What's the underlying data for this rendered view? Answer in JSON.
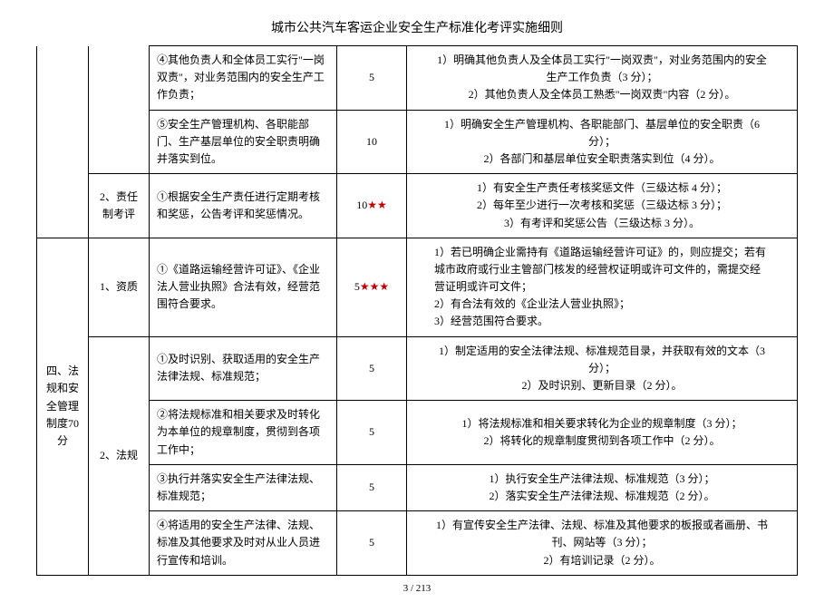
{
  "title": "城市公共汽车客运企业安全生产标准化考评实施细则",
  "footer": "3 / 213",
  "rows": [
    {
      "col1": "",
      "col2": "",
      "col3": "④其他负责人和全体员工实行\"一岗双责\"，对业务范围内的安全生产工作负责；",
      "col4": "5",
      "stars": "",
      "col5": "1）明确其他负责人及全体员工实行\"一岗双责\"，对业务范围内的安全生产工作负责（3 分）；\n2）其他负责人及全体员工熟悉\"一岗双责\"内容（2 分）。"
    },
    {
      "col1": "",
      "col2": "",
      "col3": "⑤安全生产管理机构、各职能部门、生产基层单位的安全职责明确并落实到位。",
      "col4": "10",
      "stars": "",
      "col5": "1）明确安全生产管理机构、各职能部门、基层单位的安全职责（6 分）；\n2）各部门和基层单位安全职责落实到位（4 分）。"
    },
    {
      "col1": "",
      "col2": "2、责任制考评",
      "col3": "①根据安全生产责任进行定期考核和奖惩，公告考评和奖惩情况。",
      "col4": "10",
      "stars": "★★",
      "col5": "1）有安全生产责任考核奖惩文件（三级达标 4 分）；\n2）每年至少进行一次考核和奖惩（三级达标 3 分）；\n3）有考评和奖惩公告（三级达标 3 分）。"
    },
    {
      "col1": "四、法规和安全管理制度70 分",
      "col2": "1、资质",
      "col3": "①《道路运输经营许可证》、《企业法人营业执照》合法有效，经营范围符合要求。",
      "col4": "5",
      "stars": "★★★",
      "col5": "1）若已明确企业需持有《道路运输经营许可证》的，则应提交；若有城市政府或行业主管部门核发的经营权证明或许可文件的，需提交经营证明或许可文件；\n2）有合法有效的《企业法人营业执照》；\n3）经营范围符合要求。",
      "col5align": "left"
    },
    {
      "col1": "",
      "col2": "2、法规",
      "col3": "①及时识别、获取适用的安全生产法律法规、标准规范；",
      "col4": "5",
      "stars": "",
      "col5": "1）制定适用的安全法律法规、标准规范目录，并获取有效的文本（3 分）；\n2）及时识别、更新目录（2 分）。"
    },
    {
      "col1": "",
      "col2": "",
      "col3": "②将法规标准和相关要求及时转化为本单位的规章制度，贯彻到各项工作中；",
      "col4": "5",
      "stars": "",
      "col5": "1）将法规标准和相关要求转化为企业的规章制度（3 分）；\n2）将转化的规章制度贯彻到各项工作中（2 分）。"
    },
    {
      "col1": "",
      "col2": "",
      "col3": "③执行并落实安全生产法律法规、标准规范；",
      "col4": "5",
      "stars": "",
      "col5": "1）执行安全生产法律法规、标准规范（3 分）；\n2）落实安全生产法律法规、标准规范（2 分）。"
    },
    {
      "col1": "",
      "col2": "",
      "col3": "④将适用的安全生产法律、法规、标准及其他要求及时对从业人员进行宣传和培训。",
      "col4": "5",
      "stars": "",
      "col5": "1）有宣传安全生产法律、法规、标准及其他要求的板报或者画册、书刊、网站等（3 分）；\n2）有培训记录（2 分）。"
    }
  ]
}
